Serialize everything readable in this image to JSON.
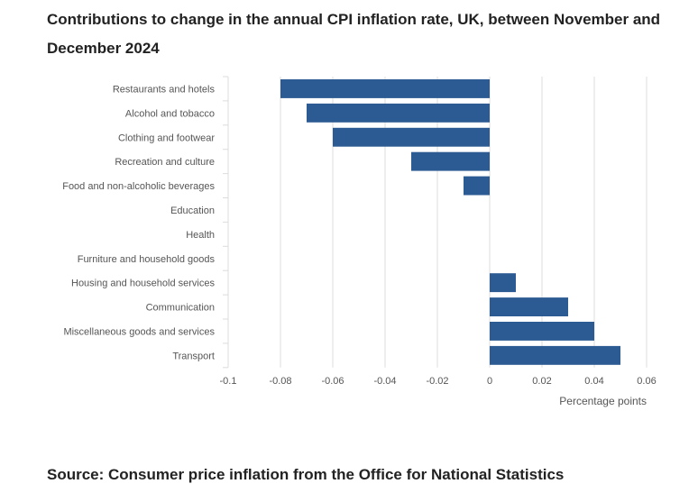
{
  "title": "Contributions to change in the annual CPI inflation rate, UK, between November and December 2024",
  "source": "Source: Consumer price inflation from the Office for National Statistics",
  "colors": {
    "bar": "#2c5a92",
    "grid": "#dcdcdc",
    "axis_text": "#555555"
  },
  "chart_data": {
    "type": "bar",
    "orientation": "horizontal",
    "categories": [
      "Restaurants and hotels",
      "Alcohol and tobacco",
      "Clothing and footwear",
      "Recreation and culture",
      "Food and non-alcoholic beverages",
      "Education",
      "Health",
      "Furniture and household goods",
      "Housing and household services",
      "Communication",
      "Miscellaneous goods and services",
      "Transport"
    ],
    "values": [
      -0.08,
      -0.07,
      -0.06,
      -0.03,
      -0.01,
      0,
      0,
      0,
      0.01,
      0.03,
      0.04,
      0.05
    ],
    "xlabel": "Percentage points",
    "xlim": [
      -0.1,
      0.06
    ],
    "xticks": [
      -0.1,
      -0.08,
      -0.06,
      -0.04,
      -0.02,
      0,
      0.02,
      0.04,
      0.06
    ],
    "xtick_labels": [
      "-0.1",
      "-0.08",
      "-0.06",
      "-0.04",
      "-0.02",
      "0",
      "0.02",
      "0.04",
      "0.06"
    ],
    "grid": "vertical"
  }
}
